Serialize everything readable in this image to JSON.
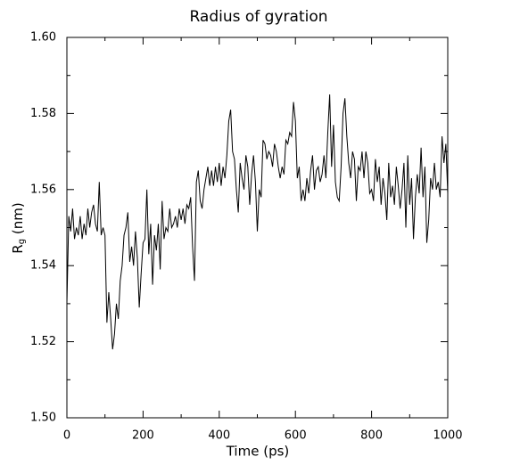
{
  "chart_data": {
    "type": "line",
    "title": "Radius of gyration",
    "xlabel": "Time (ps)",
    "ylabel": {
      "base": "R",
      "sub": "g",
      "rest": " (nm)"
    },
    "xlim": [
      0,
      1000
    ],
    "ylim": [
      1.5,
      1.6
    ],
    "xticks": [
      0,
      200,
      400,
      600,
      800,
      1000
    ],
    "xminor_ticks": [
      100,
      300,
      500,
      700,
      900
    ],
    "yticks": [
      {
        "value": 1.5,
        "label": "1.50"
      },
      {
        "value": 1.52,
        "label": "1.52"
      },
      {
        "value": 1.54,
        "label": "1.54"
      },
      {
        "value": 1.56,
        "label": "1.56"
      },
      {
        "value": 1.58,
        "label": "1.58"
      },
      {
        "value": 1.6,
        "label": "1.60"
      }
    ],
    "yminor_ticks": [
      1.51,
      1.53,
      1.55,
      1.57,
      1.59
    ],
    "grid": false,
    "x": [
      0,
      5,
      10,
      15,
      20,
      25,
      30,
      35,
      40,
      45,
      50,
      55,
      60,
      65,
      70,
      75,
      80,
      85,
      90,
      95,
      100,
      105,
      110,
      115,
      120,
      125,
      130,
      135,
      140,
      145,
      150,
      155,
      160,
      165,
      170,
      175,
      180,
      185,
      190,
      195,
      200,
      205,
      210,
      215,
      220,
      225,
      230,
      235,
      240,
      245,
      250,
      255,
      260,
      265,
      270,
      275,
      280,
      285,
      290,
      295,
      300,
      305,
      310,
      315,
      320,
      325,
      330,
      335,
      340,
      345,
      350,
      355,
      360,
      365,
      370,
      375,
      380,
      385,
      390,
      395,
      400,
      405,
      410,
      415,
      420,
      425,
      430,
      435,
      440,
      445,
      450,
      455,
      460,
      465,
      470,
      475,
      480,
      485,
      490,
      495,
      500,
      505,
      510,
      515,
      520,
      525,
      530,
      535,
      540,
      545,
      550,
      555,
      560,
      565,
      570,
      575,
      580,
      585,
      590,
      595,
      600,
      605,
      610,
      615,
      620,
      625,
      630,
      635,
      640,
      645,
      650,
      655,
      660,
      665,
      670,
      675,
      680,
      685,
      690,
      695,
      700,
      705,
      710,
      715,
      720,
      725,
      730,
      735,
      740,
      745,
      750,
      755,
      760,
      765,
      770,
      775,
      780,
      785,
      790,
      795,
      800,
      805,
      810,
      815,
      820,
      825,
      830,
      835,
      840,
      845,
      850,
      855,
      860,
      865,
      870,
      875,
      880,
      885,
      890,
      895,
      900,
      905,
      910,
      915,
      920,
      925,
      930,
      935,
      940,
      945,
      950,
      955,
      960,
      965,
      970,
      975,
      980,
      985,
      990,
      995,
      1000
    ],
    "series": [
      {
        "color": "#000000",
        "values": [
          1.53,
          1.553,
          1.549,
          1.555,
          1.547,
          1.55,
          1.548,
          1.553,
          1.547,
          1.551,
          1.548,
          1.555,
          1.55,
          1.554,
          1.556,
          1.551,
          1.549,
          1.562,
          1.548,
          1.55,
          1.548,
          1.525,
          1.533,
          1.526,
          1.518,
          1.522,
          1.53,
          1.526,
          1.536,
          1.54,
          1.548,
          1.55,
          1.554,
          1.541,
          1.545,
          1.54,
          1.549,
          1.542,
          1.529,
          1.538,
          1.546,
          1.547,
          1.56,
          1.543,
          1.551,
          1.535,
          1.548,
          1.544,
          1.551,
          1.539,
          1.557,
          1.547,
          1.55,
          1.549,
          1.555,
          1.55,
          1.551,
          1.553,
          1.55,
          1.555,
          1.552,
          1.555,
          1.551,
          1.556,
          1.555,
          1.558,
          1.545,
          1.536,
          1.562,
          1.565,
          1.557,
          1.555,
          1.56,
          1.563,
          1.566,
          1.561,
          1.565,
          1.561,
          1.566,
          1.562,
          1.567,
          1.561,
          1.566,
          1.563,
          1.569,
          1.578,
          1.581,
          1.57,
          1.568,
          1.56,
          1.554,
          1.567,
          1.563,
          1.56,
          1.569,
          1.566,
          1.556,
          1.564,
          1.569,
          1.562,
          1.549,
          1.56,
          1.558,
          1.573,
          1.572,
          1.568,
          1.57,
          1.569,
          1.566,
          1.572,
          1.57,
          1.566,
          1.563,
          1.566,
          1.564,
          1.573,
          1.572,
          1.575,
          1.574,
          1.583,
          1.578,
          1.563,
          1.566,
          1.557,
          1.56,
          1.557,
          1.563,
          1.559,
          1.565,
          1.569,
          1.56,
          1.565,
          1.566,
          1.562,
          1.564,
          1.569,
          1.563,
          1.575,
          1.585,
          1.566,
          1.577,
          1.562,
          1.558,
          1.557,
          1.566,
          1.58,
          1.584,
          1.574,
          1.567,
          1.563,
          1.57,
          1.568,
          1.557,
          1.566,
          1.565,
          1.57,
          1.563,
          1.57,
          1.567,
          1.559,
          1.56,
          1.557,
          1.568,
          1.562,
          1.566,
          1.556,
          1.563,
          1.559,
          1.552,
          1.567,
          1.558,
          1.561,
          1.556,
          1.566,
          1.561,
          1.555,
          1.56,
          1.567,
          1.55,
          1.569,
          1.556,
          1.563,
          1.547,
          1.558,
          1.564,
          1.559,
          1.571,
          1.558,
          1.566,
          1.546,
          1.552,
          1.563,
          1.56,
          1.567,
          1.56,
          1.562,
          1.558,
          1.574,
          1.567,
          1.572,
          1.559
        ]
      }
    ]
  }
}
